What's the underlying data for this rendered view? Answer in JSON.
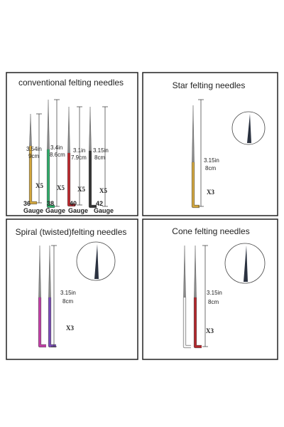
{
  "panels": [
    {
      "title": "conventional felting needles",
      "needles": [
        {
          "length_in": "3.54in",
          "length_cm": "9cm",
          "quantity": "X5",
          "gauge": "36",
          "gauge_label": "Gauge"
        },
        {
          "length_in": "3.4in",
          "length_cm": "8.6cm",
          "quantity": "X5",
          "gauge": "38",
          "gauge_label": "Gauge"
        },
        {
          "length_in": "3.1in",
          "length_cm": "7.9cm",
          "quantity": "X5",
          "gauge": "40",
          "gauge_label": "Gauge"
        },
        {
          "length_in": "3.15in",
          "length_cm": "8cm",
          "quantity": "X5",
          "gauge": "42",
          "gauge_label": "Gauge"
        }
      ]
    },
    {
      "title": "Star felting needles",
      "needles": [
        {
          "length_in": "3.15in",
          "length_cm": "8cm",
          "quantity": "X3"
        }
      ]
    },
    {
      "title": "Spiral (twisted)felting needles",
      "needles": [
        {
          "length_in": "3.15in",
          "length_cm": "8cm",
          "quantity": "X3"
        }
      ]
    },
    {
      "title": "Cone felting needles",
      "needles": [
        {
          "length_in": "3.15in",
          "length_cm": "8cm",
          "quantity": "X3"
        }
      ]
    }
  ]
}
